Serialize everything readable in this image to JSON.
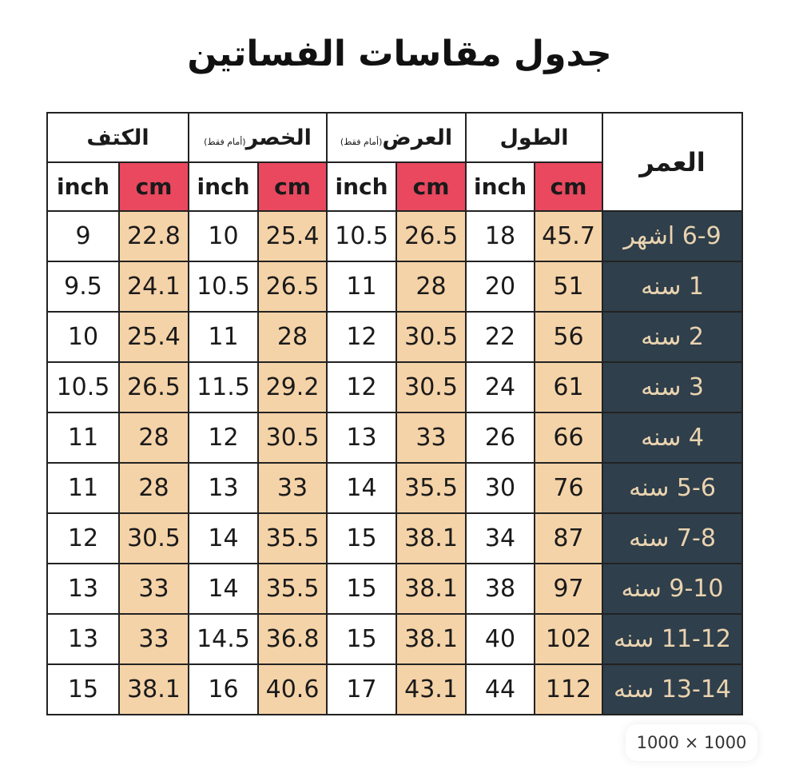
{
  "title": "جدول مقاسات الفساتين",
  "headers": {
    "shoulder": "الكتف",
    "waist": "الخصر",
    "waist_note": "(أمام فقط)",
    "width": "العرض",
    "width_note": "(أمام فقط)",
    "length": "الطول",
    "age": "العمر",
    "inch": "inch",
    "cm": "cm"
  },
  "rows": [
    {
      "age": "6-9 اشهر",
      "length_cm": "45.7",
      "length_in": "18",
      "width_cm": "26.5",
      "width_in": "10.5",
      "waist_cm": "25.4",
      "waist_in": "10",
      "shoulder_cm": "22.8",
      "shoulder_in": "9"
    },
    {
      "age": "1 سنه",
      "length_cm": "51",
      "length_in": "20",
      "width_cm": "28",
      "width_in": "11",
      "waist_cm": "26.5",
      "waist_in": "10.5",
      "shoulder_cm": "24.1",
      "shoulder_in": "9.5"
    },
    {
      "age": "2 سنه",
      "length_cm": "56",
      "length_in": "22",
      "width_cm": "30.5",
      "width_in": "12",
      "waist_cm": "28",
      "waist_in": "11",
      "shoulder_cm": "25.4",
      "shoulder_in": "10"
    },
    {
      "age": "3 سنه",
      "length_cm": "61",
      "length_in": "24",
      "width_cm": "30.5",
      "width_in": "12",
      "waist_cm": "29.2",
      "waist_in": "11.5",
      "shoulder_cm": "26.5",
      "shoulder_in": "10.5"
    },
    {
      "age": "4 سنه",
      "length_cm": "66",
      "length_in": "26",
      "width_cm": "33",
      "width_in": "13",
      "waist_cm": "30.5",
      "waist_in": "12",
      "shoulder_cm": "28",
      "shoulder_in": "11"
    },
    {
      "age": "5-6 سنه",
      "length_cm": "76",
      "length_in": "30",
      "width_cm": "35.5",
      "width_in": "14",
      "waist_cm": "33",
      "waist_in": "13",
      "shoulder_cm": "28",
      "shoulder_in": "11"
    },
    {
      "age": "7-8 سنه",
      "length_cm": "87",
      "length_in": "34",
      "width_cm": "38.1",
      "width_in": "15",
      "waist_cm": "35.5",
      "waist_in": "14",
      "shoulder_cm": "30.5",
      "shoulder_in": "12"
    },
    {
      "age": "9-10 سنه",
      "length_cm": "97",
      "length_in": "38",
      "width_cm": "38.1",
      "width_in": "15",
      "waist_cm": "35.5",
      "waist_in": "14",
      "shoulder_cm": "33",
      "shoulder_in": "13"
    },
    {
      "age": "11-12 سنه",
      "length_cm": "102",
      "length_in": "40",
      "width_cm": "38.1",
      "width_in": "15",
      "waist_cm": "36.8",
      "waist_in": "14.5",
      "shoulder_cm": "33",
      "shoulder_in": "13"
    },
    {
      "age": "13-14 سنه",
      "length_cm": "112",
      "length_in": "44",
      "width_cm": "43.1",
      "width_in": "17",
      "waist_cm": "40.6",
      "waist_in": "16",
      "shoulder_cm": "38.1",
      "shoulder_in": "15"
    }
  ],
  "badge": "1000 × 1000",
  "colors": {
    "cm_header": "#e9485f",
    "cm_cell": "#f5d3a8",
    "age_bg": "#2f3f4b",
    "age_text": "#ead3b0"
  }
}
